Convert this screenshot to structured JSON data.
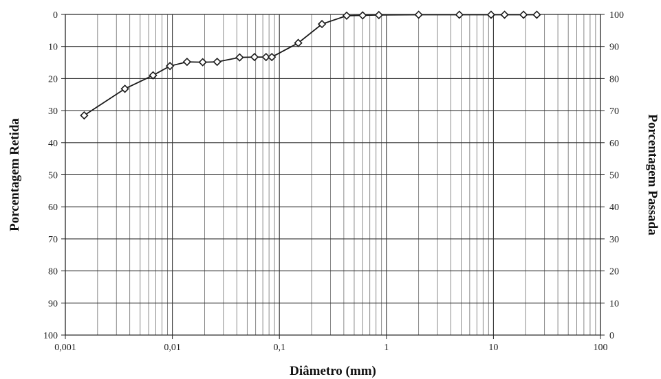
{
  "chart_data": {
    "type": "line",
    "xlabel": "Diâmetro (mm)",
    "ylabel_left": "Porcentagem Retida",
    "ylabel_right": "Porcentagem Passada",
    "x_scale": "log",
    "xlim": [
      0.001,
      100
    ],
    "ylim_left": [
      0,
      100
    ],
    "ylim_right": [
      0,
      100
    ],
    "left_axis_inverted": true,
    "grid": true,
    "x_tick_labels": [
      "0,001",
      "0,01",
      "0,1",
      "1",
      "10",
      "100"
    ],
    "y_left_tick_labels": [
      "0",
      "10",
      "20",
      "30",
      "40",
      "50",
      "60",
      "70",
      "80",
      "90",
      "100"
    ],
    "y_right_tick_labels": [
      "0",
      "10",
      "20",
      "30",
      "40",
      "50",
      "60",
      "70",
      "80",
      "90",
      "100"
    ],
    "series": [
      {
        "x": [
          0.0015,
          0.0036,
          0.0066,
          0.0095,
          0.0137,
          0.0192,
          0.0262,
          0.0425,
          0.0585,
          0.075,
          0.085,
          0.15,
          0.25,
          0.425,
          0.6,
          0.85,
          2.0,
          4.8,
          9.5,
          12.7,
          19.1,
          25.4
        ],
        "y": [
          31.5,
          23.2,
          19.0,
          16.1,
          14.8,
          14.9,
          14.8,
          13.4,
          13.3,
          13.3,
          13.3,
          8.9,
          3.0,
          0.4,
          0.3,
          0.2,
          0.1,
          0.1,
          0.1,
          0.1,
          0.1,
          0.1
        ]
      }
    ]
  }
}
